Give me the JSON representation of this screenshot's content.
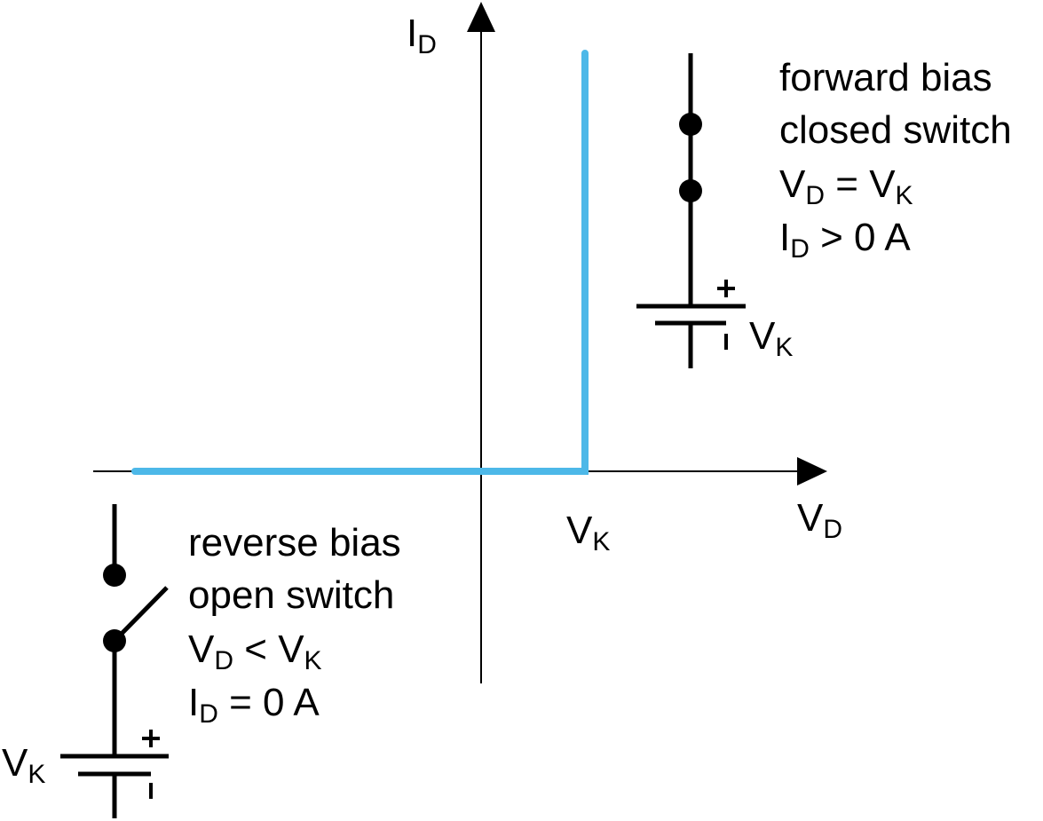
{
  "axes": {
    "y_label_main": "I",
    "y_label_sub": "D",
    "x_label_main": "V",
    "x_label_sub": "D",
    "vk_tick_main": "V",
    "vk_tick_sub": "K"
  },
  "colors": {
    "curve": "#4DB8E8",
    "ink": "#000000"
  },
  "forward": {
    "line1": "forward bias",
    "line2": "closed switch",
    "eq1": {
      "a_main": "V",
      "a_sub": "D",
      "op": " = ",
      "b_main": "V",
      "b_sub": "K"
    },
    "eq2": {
      "a_main": "I",
      "a_sub": "D",
      "rest": " > 0 A"
    },
    "battery": {
      "label_main": "V",
      "label_sub": "K",
      "plus": "+",
      "minus": "-"
    }
  },
  "reverse": {
    "line1": "reverse bias",
    "line2": "open switch",
    "eq1": {
      "a_main": "V",
      "a_sub": "D",
      "op": " < ",
      "b_main": "V",
      "b_sub": "K"
    },
    "eq2": {
      "a_main": "I",
      "a_sub": "D",
      "rest": " = 0 A"
    },
    "battery": {
      "label_main": "V",
      "label_sub": "K",
      "plus": "+",
      "minus": "-"
    }
  }
}
